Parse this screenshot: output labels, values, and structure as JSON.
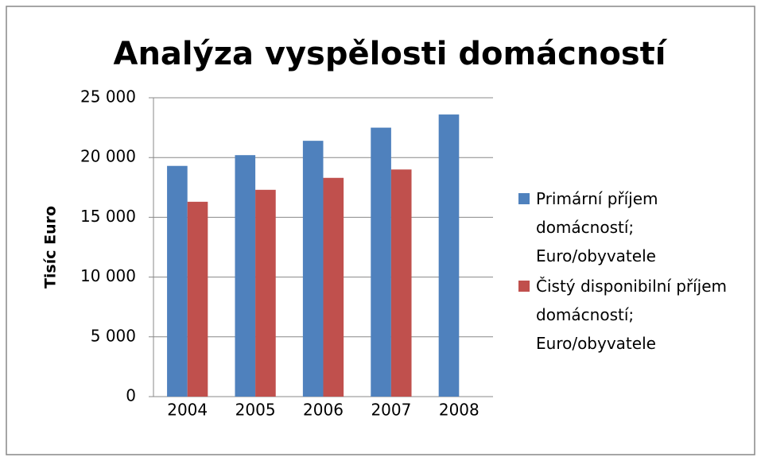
{
  "chart_data": {
    "type": "bar",
    "title": "Analýza vyspělosti domácností",
    "y_label": "Tisíc Euro",
    "categories": [
      "2004",
      "2005",
      "2006",
      "2007",
      "2008"
    ],
    "series": [
      {
        "name": "Primární příjem domácností; Euro/obyvatele",
        "color": "#4f81bd",
        "values": [
          19300,
          20200,
          21400,
          22500,
          23600
        ]
      },
      {
        "name": "Čistý disponibilní příjem domácností; Euro/obyvatele",
        "color": "#c0504d",
        "values": [
          16300,
          17300,
          18300,
          19000,
          null
        ]
      }
    ],
    "ylim": [
      0,
      25000
    ],
    "yticks": [
      0,
      {
        "value": 5000,
        "label": "5 000"
      },
      {
        "value": 10000,
        "label": "10 000"
      },
      {
        "value": 15000,
        "label": "15 000"
      },
      {
        "value": 20000,
        "label": "20 000"
      },
      {
        "value": 25000,
        "label": "25 000"
      }
    ],
    "grid": true,
    "legend": "right"
  }
}
